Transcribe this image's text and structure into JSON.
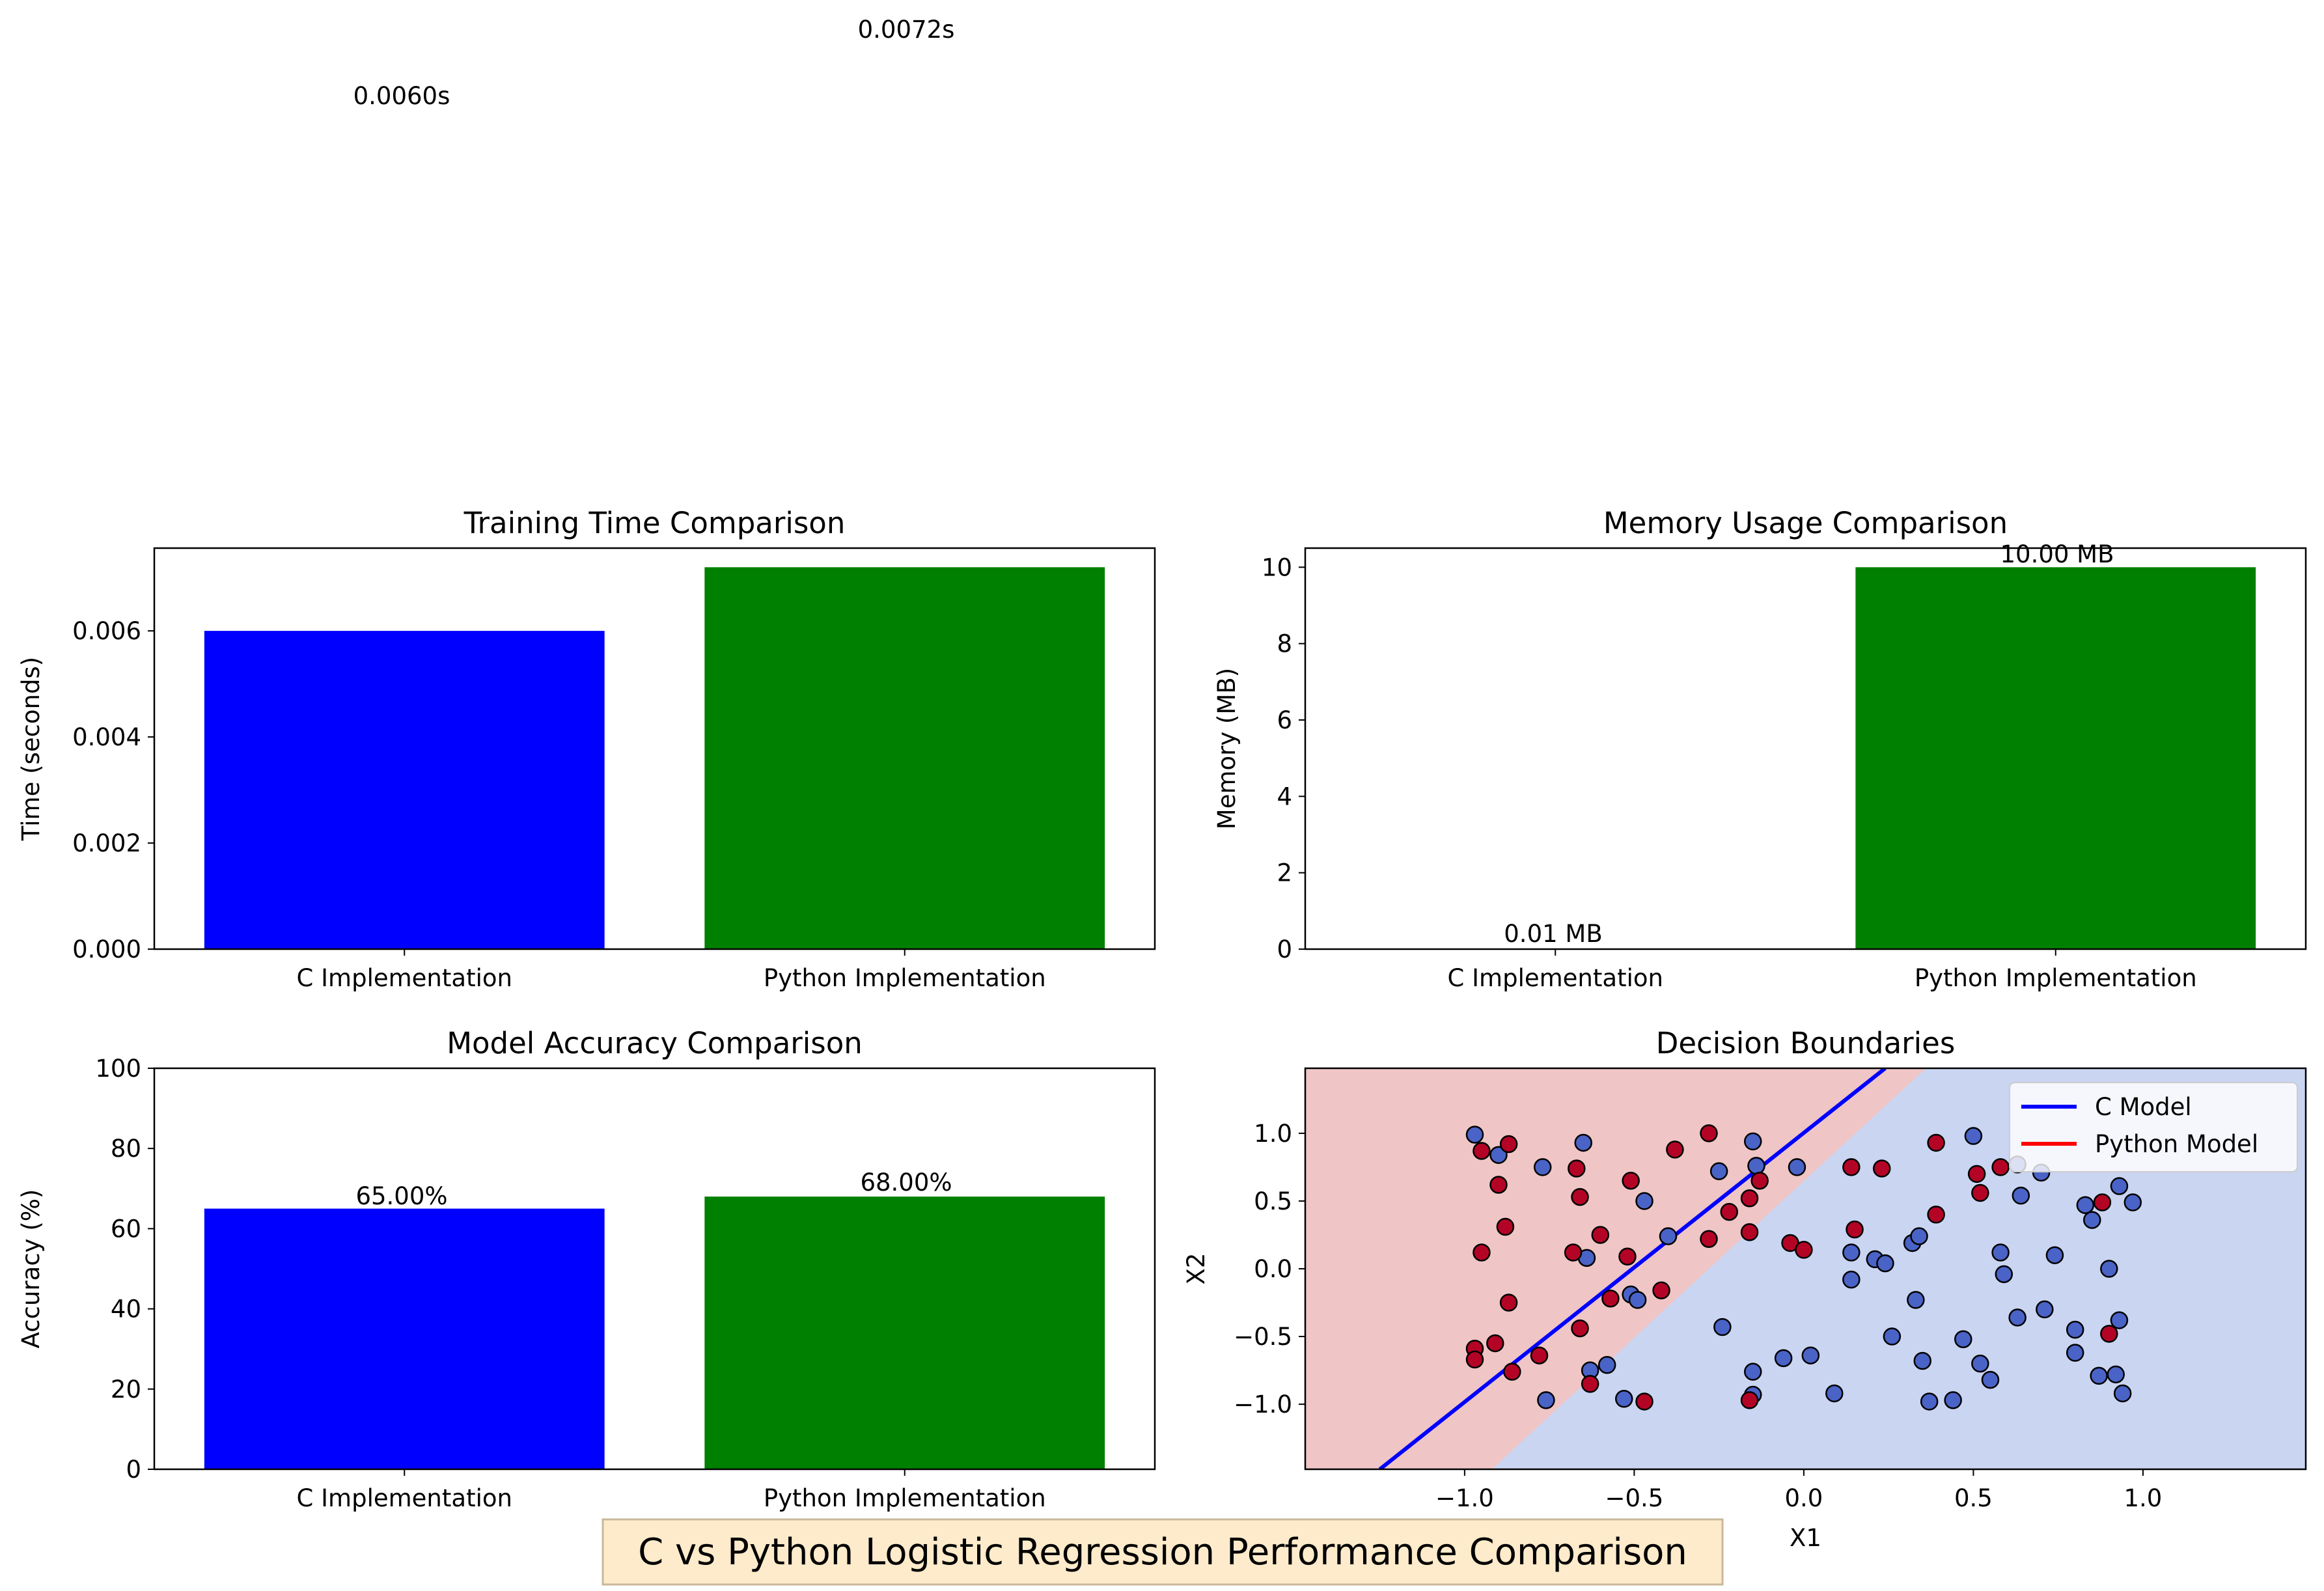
{
  "suptitle": "C vs Python Logistic Regression Performance Comparison",
  "colors": {
    "c_bar": "#0000ff",
    "python_bar": "#008000",
    "class0": "#4a63c7",
    "class1": "#b40426",
    "region0": "#cad5f2",
    "region1": "#efc5c5",
    "c_line": "#0000ff",
    "python_line": "#ff0000",
    "suptitle_box": "#fdebcb"
  },
  "chart_data": [
    {
      "id": "time",
      "type": "bar",
      "title": "Training Time Comparison",
      "ylabel": "Time (seconds)",
      "categories": [
        "C Implementation",
        "Python Implementation"
      ],
      "values": [
        0.006,
        0.0072
      ],
      "value_labels": [
        "0.0060s",
        "0.0072s"
      ],
      "ylim": [
        0,
        0.00756
      ],
      "yticks": [
        0,
        0.002,
        0.004,
        0.006
      ],
      "ytick_labels": [
        "0.000",
        "0.002",
        "0.004",
        "0.006"
      ]
    },
    {
      "id": "memory",
      "type": "bar",
      "title": "Memory Usage Comparison",
      "ylabel": "Memory (MB)",
      "categories": [
        "C Implementation",
        "Python Implementation"
      ],
      "values": [
        0.01,
        10.0
      ],
      "value_labels": [
        "0.01 MB",
        "10.00 MB"
      ],
      "ylim": [
        0,
        10.5
      ],
      "yticks": [
        0,
        2,
        4,
        6,
        8,
        10
      ],
      "ytick_labels": [
        "0",
        "2",
        "4",
        "6",
        "8",
        "10"
      ]
    },
    {
      "id": "accuracy",
      "type": "bar",
      "title": "Model Accuracy Comparison",
      "ylabel": "Accuracy (%)",
      "categories": [
        "C Implementation",
        "Python Implementation"
      ],
      "values": [
        65.0,
        68.0
      ],
      "value_labels": [
        "65.00%",
        "68.00%"
      ],
      "ylim": [
        0,
        100
      ],
      "yticks": [
        0,
        20,
        40,
        60,
        80,
        100
      ],
      "ytick_labels": [
        "0",
        "20",
        "40",
        "60",
        "80",
        "100"
      ]
    },
    {
      "id": "boundary",
      "type": "scatter",
      "title": "Decision Boundaries",
      "xlabel": "X1",
      "ylabel": "X2",
      "xlim": [
        -1.47,
        1.48
      ],
      "ylim": [
        -1.48,
        1.48
      ],
      "xticks": [
        -1.0,
        -0.5,
        0.0,
        0.5,
        1.0
      ],
      "xtick_labels": [
        "−1.0",
        "−0.5",
        "0.0",
        "0.5",
        "1.0"
      ],
      "yticks": [
        -1.0,
        -0.5,
        0.0,
        0.5,
        1.0
      ],
      "ytick_labels": [
        "−1.0",
        "−0.5",
        "0.0",
        "0.5",
        "1.0"
      ],
      "region_boundary": [
        [
          -0.92,
          -1.48
        ],
        [
          0.36,
          1.48
        ]
      ],
      "lines": [
        {
          "name": "C Model",
          "color": "#0000ff",
          "points": [
            [
              -1.25,
              -1.48
            ],
            [
              0.24,
              1.48
            ]
          ]
        },
        {
          "name": "Python Model",
          "color": "#ff0000",
          "points": []
        }
      ],
      "legend": {
        "placement": "top-right",
        "entries": [
          "C Model",
          "Python Model"
        ]
      },
      "points": [
        {
          "x": -0.97,
          "y": 0.99,
          "c": 0
        },
        {
          "x": -0.9,
          "y": 0.84,
          "c": 0
        },
        {
          "x": -0.77,
          "y": 0.75,
          "c": 0
        },
        {
          "x": -0.65,
          "y": 0.93,
          "c": 0
        },
        {
          "x": -0.15,
          "y": 0.94,
          "c": 0
        },
        {
          "x": -0.25,
          "y": 0.72,
          "c": 0
        },
        {
          "x": -0.14,
          "y": 0.76,
          "c": 0
        },
        {
          "x": -0.02,
          "y": 0.75,
          "c": 0
        },
        {
          "x": -0.47,
          "y": 0.5,
          "c": 0
        },
        {
          "x": -0.4,
          "y": 0.24,
          "c": 0
        },
        {
          "x": -0.64,
          "y": 0.08,
          "c": 0
        },
        {
          "x": -0.51,
          "y": -0.19,
          "c": 0
        },
        {
          "x": -0.49,
          "y": -0.23,
          "c": 0
        },
        {
          "x": -0.58,
          "y": -0.71,
          "c": 0
        },
        {
          "x": -0.63,
          "y": -0.75,
          "c": 0
        },
        {
          "x": -0.76,
          "y": -0.97,
          "c": 0
        },
        {
          "x": -0.53,
          "y": -0.96,
          "c": 0
        },
        {
          "x": -0.24,
          "y": -0.43,
          "c": 0
        },
        {
          "x": -0.15,
          "y": -0.76,
          "c": 0
        },
        {
          "x": -0.15,
          "y": -0.93,
          "c": 0
        },
        {
          "x": -0.06,
          "y": -0.66,
          "c": 0
        },
        {
          "x": 0.02,
          "y": -0.64,
          "c": 0
        },
        {
          "x": 0.09,
          "y": -0.92,
          "c": 0
        },
        {
          "x": 0.14,
          "y": 0.12,
          "c": 0
        },
        {
          "x": 0.14,
          "y": -0.08,
          "c": 0
        },
        {
          "x": 0.21,
          "y": 0.07,
          "c": 0
        },
        {
          "x": 0.24,
          "y": 0.04,
          "c": 0
        },
        {
          "x": 0.26,
          "y": -0.5,
          "c": 0
        },
        {
          "x": 0.32,
          "y": 0.19,
          "c": 0
        },
        {
          "x": 0.34,
          "y": 0.24,
          "c": 0
        },
        {
          "x": 0.33,
          "y": -0.23,
          "c": 0
        },
        {
          "x": 0.35,
          "y": -0.68,
          "c": 0
        },
        {
          "x": 0.37,
          "y": -0.98,
          "c": 0
        },
        {
          "x": 0.44,
          "y": -0.97,
          "c": 0
        },
        {
          "x": 0.47,
          "y": -0.52,
          "c": 0
        },
        {
          "x": 0.5,
          "y": 0.98,
          "c": 0
        },
        {
          "x": 0.52,
          "y": -0.7,
          "c": 0
        },
        {
          "x": 0.55,
          "y": -0.82,
          "c": 0
        },
        {
          "x": 0.58,
          "y": 0.12,
          "c": 0
        },
        {
          "x": 0.59,
          "y": -0.04,
          "c": 0
        },
        {
          "x": 0.63,
          "y": -0.36,
          "c": 0
        },
        {
          "x": 0.64,
          "y": 0.54,
          "c": 0
        },
        {
          "x": 0.7,
          "y": 0.71,
          "c": 0
        },
        {
          "x": 0.71,
          "y": -0.3,
          "c": 0
        },
        {
          "x": 0.74,
          "y": 0.1,
          "c": 0
        },
        {
          "x": 0.8,
          "y": -0.45,
          "c": 0
        },
        {
          "x": 0.8,
          "y": -0.62,
          "c": 0
        },
        {
          "x": 0.83,
          "y": 0.47,
          "c": 0
        },
        {
          "x": 0.85,
          "y": 0.36,
          "c": 0
        },
        {
          "x": 0.87,
          "y": -0.79,
          "c": 0
        },
        {
          "x": 0.9,
          "y": 0.0,
          "c": 0
        },
        {
          "x": 0.93,
          "y": 0.61,
          "c": 0
        },
        {
          "x": 0.97,
          "y": 0.49,
          "c": 0
        },
        {
          "x": 0.93,
          "y": -0.38,
          "c": 0
        },
        {
          "x": 0.92,
          "y": -0.78,
          "c": 0
        },
        {
          "x": 0.94,
          "y": -0.92,
          "c": 0
        },
        {
          "x": 0.63,
          "y": 0.77,
          "c": 0
        },
        {
          "x": -0.95,
          "y": 0.87,
          "c": 1
        },
        {
          "x": -0.87,
          "y": 0.92,
          "c": 1
        },
        {
          "x": -0.9,
          "y": 0.62,
          "c": 1
        },
        {
          "x": -0.88,
          "y": 0.31,
          "c": 1
        },
        {
          "x": -0.95,
          "y": 0.12,
          "c": 1
        },
        {
          "x": -0.87,
          "y": -0.25,
          "c": 1
        },
        {
          "x": -0.97,
          "y": -0.59,
          "c": 1
        },
        {
          "x": -0.97,
          "y": -0.67,
          "c": 1
        },
        {
          "x": -0.91,
          "y": -0.55,
          "c": 1
        },
        {
          "x": -0.86,
          "y": -0.76,
          "c": 1
        },
        {
          "x": -0.78,
          "y": -0.64,
          "c": 1
        },
        {
          "x": -0.66,
          "y": -0.44,
          "c": 1
        },
        {
          "x": -0.63,
          "y": -0.85,
          "c": 1
        },
        {
          "x": -0.47,
          "y": -0.98,
          "c": 1
        },
        {
          "x": -0.67,
          "y": 0.74,
          "c": 1
        },
        {
          "x": -0.66,
          "y": 0.53,
          "c": 1
        },
        {
          "x": -0.6,
          "y": 0.25,
          "c": 1
        },
        {
          "x": -0.68,
          "y": 0.12,
          "c": 1
        },
        {
          "x": -0.57,
          "y": -0.22,
          "c": 1
        },
        {
          "x": -0.51,
          "y": 0.65,
          "c": 1
        },
        {
          "x": -0.52,
          "y": 0.09,
          "c": 1
        },
        {
          "x": -0.42,
          "y": -0.16,
          "c": 1
        },
        {
          "x": -0.38,
          "y": 0.88,
          "c": 1
        },
        {
          "x": -0.28,
          "y": 1.0,
          "c": 1
        },
        {
          "x": -0.22,
          "y": 0.42,
          "c": 1
        },
        {
          "x": -0.28,
          "y": 0.22,
          "c": 1
        },
        {
          "x": -0.16,
          "y": 0.52,
          "c": 1
        },
        {
          "x": -0.13,
          "y": 0.65,
          "c": 1
        },
        {
          "x": -0.16,
          "y": 0.27,
          "c": 1
        },
        {
          "x": -0.04,
          "y": 0.19,
          "c": 1
        },
        {
          "x": 0.0,
          "y": 0.14,
          "c": 1
        },
        {
          "x": -0.16,
          "y": -0.97,
          "c": 1
        },
        {
          "x": 0.14,
          "y": 0.75,
          "c": 1
        },
        {
          "x": 0.23,
          "y": 0.74,
          "c": 1
        },
        {
          "x": 0.15,
          "y": 0.29,
          "c": 1
        },
        {
          "x": 0.39,
          "y": 0.93,
          "c": 1
        },
        {
          "x": 0.39,
          "y": 0.4,
          "c": 1
        },
        {
          "x": 0.51,
          "y": 0.7,
          "c": 1
        },
        {
          "x": 0.52,
          "y": 0.56,
          "c": 1
        },
        {
          "x": 0.58,
          "y": 0.75,
          "c": 1
        },
        {
          "x": 0.88,
          "y": 0.49,
          "c": 1
        },
        {
          "x": 0.9,
          "y": -0.48,
          "c": 1
        }
      ]
    }
  ]
}
